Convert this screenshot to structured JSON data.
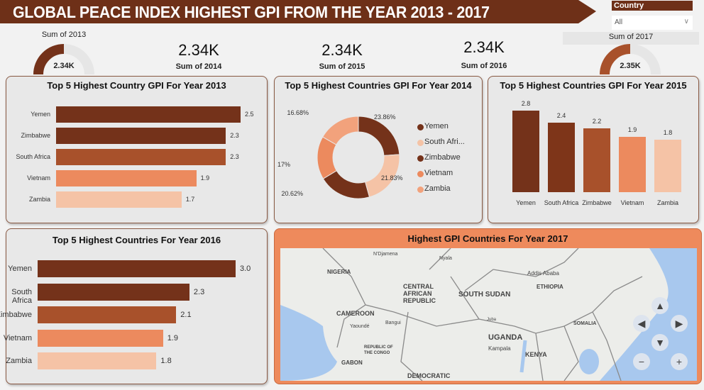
{
  "header": {
    "title": "GLOBAL PEACE INDEX HIGHEST GPI FROM THE YEAR 2013 - 2017"
  },
  "slicer": {
    "title": "Country",
    "selected": "All"
  },
  "kpis": [
    {
      "label": "Sum of 2013",
      "value": "2.34K",
      "type": "gauge",
      "fraction": 0.5
    },
    {
      "label": "Sum of 2014",
      "value": "2.34K",
      "type": "card"
    },
    {
      "label": "Sum of 2015",
      "value": "2.34K",
      "type": "card"
    },
    {
      "label": "Sum of 2016",
      "value": "2.34K",
      "type": "card"
    },
    {
      "label": "Sum of 2017",
      "value": "2.35K",
      "type": "gauge",
      "fraction": 0.5
    }
  ],
  "colors": {
    "dark": "#74321a",
    "dark2": "#7e3519",
    "medium": "#a8512b",
    "orange": "#ec8a5e",
    "light": "#f5c3a6",
    "lightorange": "#f2a27c"
  },
  "chart_data": [
    {
      "type": "bar",
      "orientation": "horizontal",
      "title": "Top 5 Highest Country GPI For Year 2013",
      "categories": [
        "Yemen",
        "Zimbabwe",
        "South Africa",
        "Vietnam",
        "Zambia"
      ],
      "values": [
        2.5,
        2.3,
        2.3,
        1.9,
        1.7
      ],
      "labels": [
        "2.5",
        "2.3",
        "2.3",
        "1.9",
        "1.7"
      ],
      "colors": [
        "#74321a",
        "#74321a",
        "#a8512b",
        "#ec8a5e",
        "#f5c3a6"
      ]
    },
    {
      "type": "pie",
      "donut": true,
      "title": "Top 5 Highest Countries GPI For Year 2014",
      "categories": [
        "Yemen",
        "South Africa",
        "Zimbabwe",
        "Vietnam",
        "Zambia"
      ],
      "legend": [
        "Yemen",
        "South Afri...",
        "Zimbabwe",
        "Vietnam",
        "Zambia"
      ],
      "values": [
        23.86,
        21.83,
        20.62,
        17,
        16.68
      ],
      "labels": [
        "23.86%",
        "21.83%",
        "20.62%",
        "17%",
        "16.68%"
      ],
      "colors": [
        "#74321a",
        "#f5c3a6",
        "#74321a",
        "#ec8a5e",
        "#f2a27c"
      ],
      "legend_position": "right"
    },
    {
      "type": "bar",
      "orientation": "vertical",
      "title": "Top 5 Highest Countries GPI For Year 2015",
      "categories": [
        "Yemen",
        "South Africa",
        "Zimbabwe",
        "Vietnam",
        "Zambia"
      ],
      "values": [
        2.8,
        2.4,
        2.2,
        1.9,
        1.8
      ],
      "labels": [
        "2.8",
        "2.4",
        "2.2",
        "1.9",
        "1.8"
      ],
      "colors": [
        "#74321a",
        "#7e3519",
        "#a8512b",
        "#ec8a5e",
        "#f5c3a6"
      ]
    },
    {
      "type": "bar",
      "orientation": "horizontal",
      "title": "Top 5 Highest Countries For Year 2016",
      "categories": [
        "Yemen",
        "South Africa",
        "Zimbabwe",
        "Vietnam",
        "Zambia"
      ],
      "values": [
        3.0,
        2.3,
        2.1,
        1.9,
        1.8
      ],
      "labels": [
        "3.0",
        "2.3",
        "2.1",
        "1.9",
        "1.8"
      ],
      "colors": [
        "#74321a",
        "#74321a",
        "#a8512b",
        "#ec8a5e",
        "#f5c3a6"
      ]
    }
  ],
  "map": {
    "title": "Highest GPI Countries For Year 2017",
    "labels": [
      "N'Djamena",
      "Nyala",
      "NIGERIA",
      "CENTRAL",
      "AFRICAN",
      "REPUBLIC",
      "SOUTH SUDAN",
      "Addis Ababa",
      "ETHIOPIA",
      "CAMEROON",
      "Yaoundé",
      "Bangui",
      "Juba",
      "UGANDA",
      "Kampala",
      "KENYA",
      "GABON",
      "REPUBLIC OF",
      "THE CONGO",
      "DEMOCRATIC",
      "SOMALIA"
    ],
    "controls": [
      "pan-up",
      "pan-left",
      "pan-right",
      "pan-down",
      "zoom-out",
      "zoom-in"
    ]
  }
}
